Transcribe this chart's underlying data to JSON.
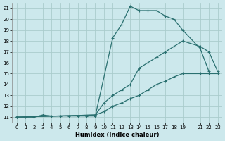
{
  "xlabel": "Humidex (Indice chaleur)",
  "bg_color": "#cce8ec",
  "grid_color": "#aacccc",
  "line_color": "#2a7070",
  "xlim": [
    -0.5,
    23.5
  ],
  "ylim": [
    10.5,
    21.5
  ],
  "xticks": [
    0,
    1,
    2,
    3,
    4,
    5,
    6,
    7,
    8,
    9,
    10,
    11,
    12,
    13,
    14,
    15,
    16,
    17,
    18,
    19,
    21,
    22,
    23
  ],
  "yticks": [
    11,
    12,
    13,
    14,
    15,
    16,
    17,
    18,
    19,
    20,
    21
  ],
  "series1": [
    [
      0,
      11
    ],
    [
      1,
      11
    ],
    [
      2,
      11
    ],
    [
      3,
      11.2
    ],
    [
      4,
      11.1
    ],
    [
      5,
      11.1
    ],
    [
      6,
      11.1
    ],
    [
      7,
      11.1
    ],
    [
      8,
      11.1
    ],
    [
      9,
      11.1
    ],
    [
      11,
      18.3
    ],
    [
      12,
      19.5
    ],
    [
      13,
      21.2
    ],
    [
      14,
      20.8
    ],
    [
      15,
      20.8
    ],
    [
      16,
      20.8
    ],
    [
      17,
      20.3
    ],
    [
      18,
      20.0
    ],
    [
      19,
      19.0
    ],
    [
      21,
      17.3
    ],
    [
      22,
      15.2
    ]
  ],
  "series2": [
    [
      0,
      11
    ],
    [
      9,
      11.2
    ],
    [
      10,
      12.3
    ],
    [
      11,
      13.0
    ],
    [
      12,
      13.5
    ],
    [
      13,
      14.0
    ],
    [
      14,
      15.5
    ],
    [
      15,
      16.0
    ],
    [
      16,
      16.5
    ],
    [
      17,
      17.0
    ],
    [
      18,
      17.5
    ],
    [
      19,
      18.0
    ],
    [
      21,
      17.5
    ],
    [
      22,
      17.0
    ],
    [
      23,
      15.2
    ]
  ],
  "series3": [
    [
      0,
      11
    ],
    [
      9,
      11.2
    ],
    [
      10,
      11.5
    ],
    [
      11,
      12.0
    ],
    [
      12,
      12.3
    ],
    [
      13,
      12.7
    ],
    [
      14,
      13.0
    ],
    [
      15,
      13.5
    ],
    [
      16,
      14.0
    ],
    [
      17,
      14.3
    ],
    [
      18,
      14.7
    ],
    [
      19,
      15.0
    ],
    [
      21,
      15.0
    ],
    [
      22,
      15.0
    ],
    [
      23,
      15.0
    ]
  ]
}
